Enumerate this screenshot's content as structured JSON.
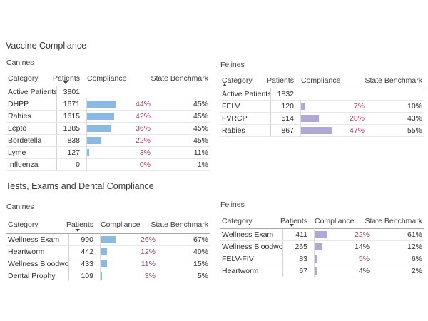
{
  "sections": [
    {
      "title": "Vaccine Compliance"
    },
    {
      "title": "Tests, Exams and Dental Compliance"
    }
  ],
  "colors": {
    "canine_bar": "#8cb9e4",
    "feline_bar": "#b2a8d6",
    "below_benchmark_text": "#a23e68",
    "normal_text": "#2e2e2e",
    "background": "#ffffff"
  },
  "chart_data": [
    {
      "type": "table",
      "section": "Vaccine Compliance",
      "group": "Canines",
      "columns": [
        "Category",
        "Patients",
        "Compliance",
        "State Benchmark"
      ],
      "sort": {
        "column": "Patients",
        "direction": "desc"
      },
      "bar_color": "#8cb9e4",
      "bar_axis_range": [
        0,
        100
      ],
      "rows": [
        {
          "category": "Active Patients",
          "patients": "3801",
          "compliance": null,
          "compliance_label": "",
          "benchmark": "",
          "below_benchmark": false
        },
        {
          "category": "DHPP",
          "patients": "1671",
          "compliance": 44,
          "compliance_label": "44%",
          "benchmark": "45%",
          "below_benchmark": true
        },
        {
          "category": "Rabies",
          "patients": "1615",
          "compliance": 42,
          "compliance_label": "42%",
          "benchmark": "45%",
          "below_benchmark": true
        },
        {
          "category": "Lepto",
          "patients": "1385",
          "compliance": 36,
          "compliance_label": "36%",
          "benchmark": "45%",
          "below_benchmark": true
        },
        {
          "category": "Bordetella",
          "patients": "838",
          "compliance": 22,
          "compliance_label": "22%",
          "benchmark": "45%",
          "below_benchmark": true
        },
        {
          "category": "Lyme",
          "patients": "127",
          "compliance": 3,
          "compliance_label": "3%",
          "benchmark": "11%",
          "below_benchmark": true
        },
        {
          "category": "Influenza",
          "patients": "0",
          "compliance": 0,
          "compliance_label": "0%",
          "benchmark": "1%",
          "below_benchmark": true
        }
      ]
    },
    {
      "type": "table",
      "section": "Vaccine Compliance",
      "group": "Felines",
      "columns": [
        "Category",
        "Patients",
        "Compliance",
        "State Benchmark"
      ],
      "sort": {
        "column": "Category",
        "direction": "asc"
      },
      "bar_color": "#b2a8d6",
      "bar_axis_range": [
        0,
        100
      ],
      "rows": [
        {
          "category": "Active Patients",
          "patients": "1832",
          "compliance": null,
          "compliance_label": "",
          "benchmark": "",
          "below_benchmark": false
        },
        {
          "category": "FELV",
          "patients": "120",
          "compliance": 7,
          "compliance_label": "7%",
          "benchmark": "10%",
          "below_benchmark": true
        },
        {
          "category": "FVRCP",
          "patients": "514",
          "compliance": 28,
          "compliance_label": "28%",
          "benchmark": "43%",
          "below_benchmark": true
        },
        {
          "category": "Rabies",
          "patients": "867",
          "compliance": 47,
          "compliance_label": "47%",
          "benchmark": "55%",
          "below_benchmark": true
        }
      ]
    },
    {
      "type": "table",
      "section": "Tests, Exams and Dental Compliance",
      "group": "Canines",
      "columns": [
        "Category",
        "Patients",
        "Compliance",
        "State Benchmark"
      ],
      "sort": {
        "column": "Patients",
        "direction": "desc"
      },
      "bar_color": "#8cb9e4",
      "bar_axis_range": [
        0,
        100
      ],
      "clipped_at_bottom": true,
      "rows": [
        {
          "category": "Wellness Exam",
          "patients": "990",
          "compliance": 26,
          "compliance_label": "26%",
          "benchmark": "67%",
          "below_benchmark": true
        },
        {
          "category": "Heartworm",
          "patients": "442",
          "compliance": 12,
          "compliance_label": "12%",
          "benchmark": "40%",
          "below_benchmark": true
        },
        {
          "category": "Wellness Bloodwork",
          "patients": "433",
          "compliance": 11,
          "compliance_label": "11%",
          "benchmark": "15%",
          "below_benchmark": true
        },
        {
          "category": "Dental Prophy",
          "patients": "109",
          "compliance": 3,
          "compliance_label": "3%",
          "benchmark": "5%",
          "below_benchmark": true
        }
      ]
    },
    {
      "type": "table",
      "section": "Tests, Exams and Dental Compliance",
      "group": "Felines",
      "columns": [
        "Category",
        "Patients",
        "Compliance",
        "State Benchmark"
      ],
      "sort": {
        "column": "Patients",
        "direction": "desc"
      },
      "bar_color": "#b2a8d6",
      "bar_axis_range": [
        0,
        100
      ],
      "rows": [
        {
          "category": "Wellness Exam",
          "patients": "411",
          "compliance": 22,
          "compliance_label": "22%",
          "benchmark": "61%",
          "below_benchmark": true
        },
        {
          "category": "Wellness Bloodwork",
          "patients": "265",
          "compliance": 14,
          "compliance_label": "14%",
          "benchmark": "12%",
          "below_benchmark": false
        },
        {
          "category": "FELV-FIV",
          "patients": "83",
          "compliance": 5,
          "compliance_label": "5%",
          "benchmark": "6%",
          "below_benchmark": true
        },
        {
          "category": "Heartworm",
          "patients": "67",
          "compliance": 4,
          "compliance_label": "4%",
          "benchmark": "2%",
          "below_benchmark": false
        }
      ]
    }
  ]
}
